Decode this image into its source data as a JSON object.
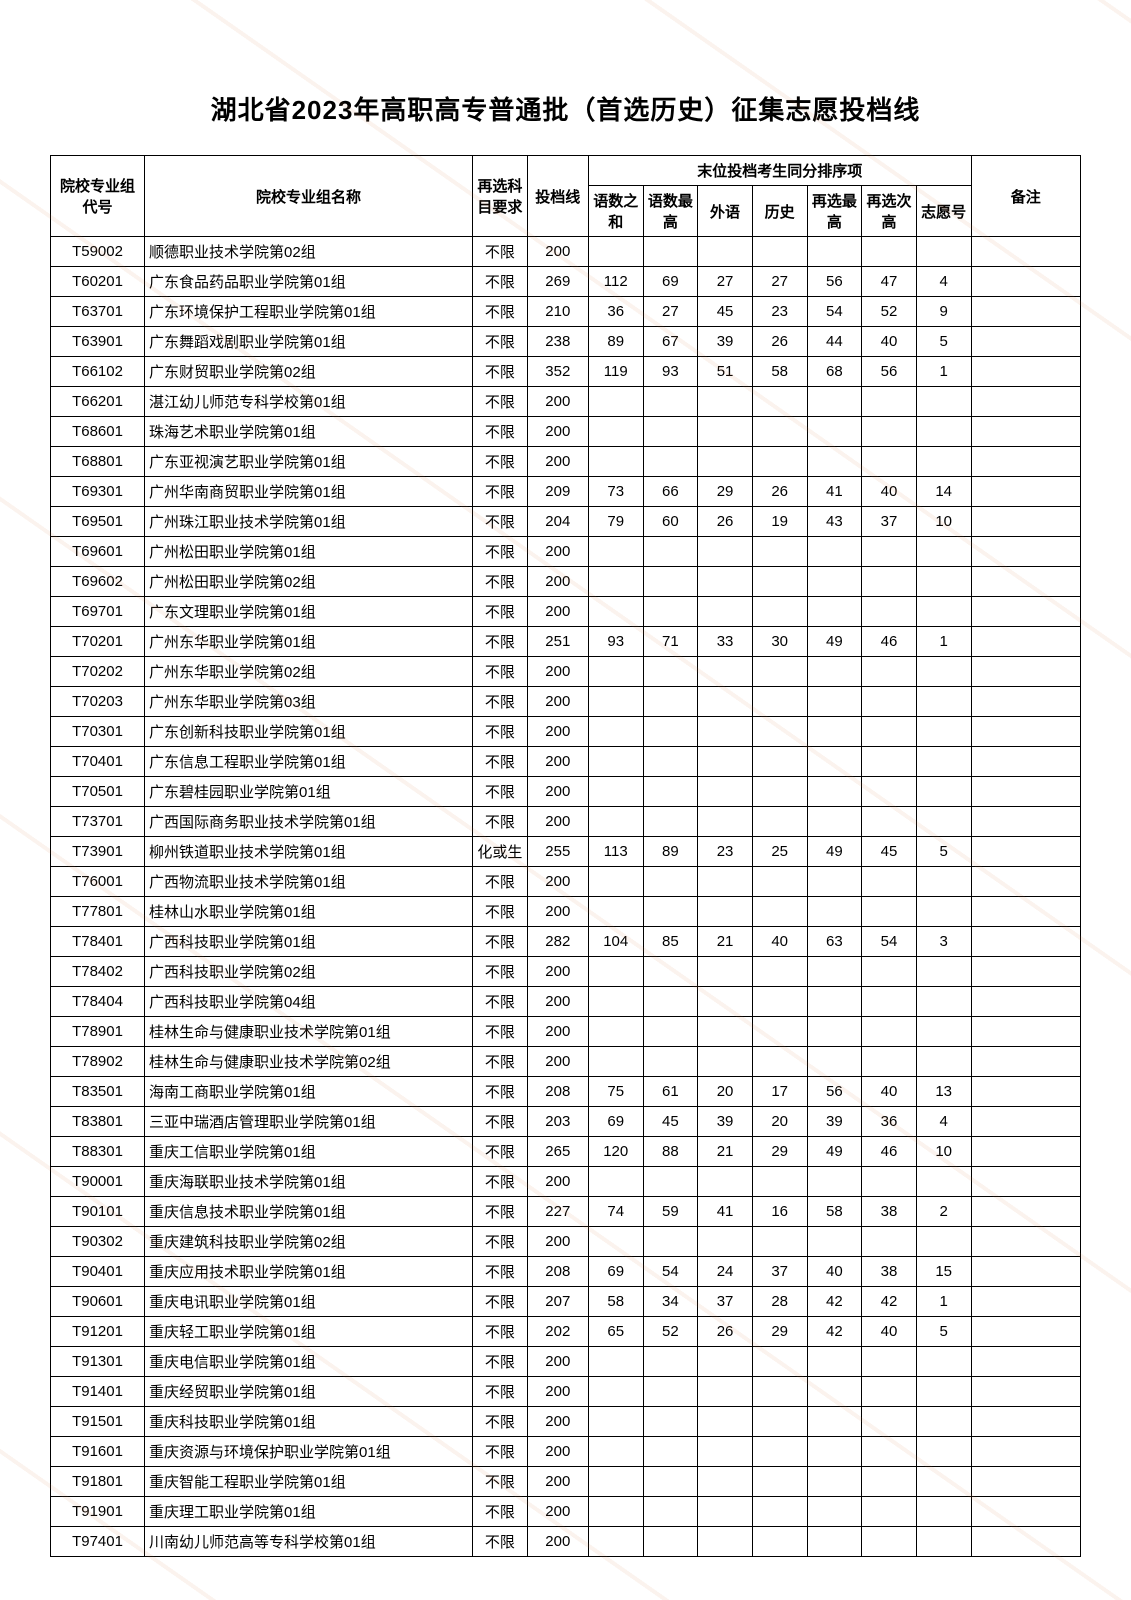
{
  "title": "湖北省2023年高职高专普通批（首选历史）征集志愿投档线",
  "header": {
    "code": "院校专业组代号",
    "name": "院校专业组名称",
    "req": "再选科目要求",
    "line": "投档线",
    "group": "末位投档考生同分排序项",
    "s1": "语数之和",
    "s2": "语数最高",
    "s3": "外语",
    "s4": "历史",
    "s5": "再选最高",
    "s6": "再选次高",
    "s7": "志愿号",
    "note": "备注"
  },
  "colors": {
    "border": "#000000",
    "background": "#ffffff",
    "watermark": "#d67a45"
  },
  "fontsize": {
    "title": 26,
    "cell": 15
  },
  "rows": [
    {
      "code": "T59002",
      "name": "顺德职业技术学院第02组",
      "req": "不限",
      "line": "200",
      "s1": "",
      "s2": "",
      "s3": "",
      "s4": "",
      "s5": "",
      "s6": "",
      "s7": "",
      "note": ""
    },
    {
      "code": "T60201",
      "name": "广东食品药品职业学院第01组",
      "req": "不限",
      "line": "269",
      "s1": "112",
      "s2": "69",
      "s3": "27",
      "s4": "27",
      "s5": "56",
      "s6": "47",
      "s7": "4",
      "note": ""
    },
    {
      "code": "T63701",
      "name": "广东环境保护工程职业学院第01组",
      "req": "不限",
      "line": "210",
      "s1": "36",
      "s2": "27",
      "s3": "45",
      "s4": "23",
      "s5": "54",
      "s6": "52",
      "s7": "9",
      "note": ""
    },
    {
      "code": "T63901",
      "name": "广东舞蹈戏剧职业学院第01组",
      "req": "不限",
      "line": "238",
      "s1": "89",
      "s2": "67",
      "s3": "39",
      "s4": "26",
      "s5": "44",
      "s6": "40",
      "s7": "5",
      "note": ""
    },
    {
      "code": "T66102",
      "name": "广东财贸职业学院第02组",
      "req": "不限",
      "line": "352",
      "s1": "119",
      "s2": "93",
      "s3": "51",
      "s4": "58",
      "s5": "68",
      "s6": "56",
      "s7": "1",
      "note": ""
    },
    {
      "code": "T66201",
      "name": "湛江幼儿师范专科学校第01组",
      "req": "不限",
      "line": "200",
      "s1": "",
      "s2": "",
      "s3": "",
      "s4": "",
      "s5": "",
      "s6": "",
      "s7": "",
      "note": ""
    },
    {
      "code": "T68601",
      "name": "珠海艺术职业学院第01组",
      "req": "不限",
      "line": "200",
      "s1": "",
      "s2": "",
      "s3": "",
      "s4": "",
      "s5": "",
      "s6": "",
      "s7": "",
      "note": ""
    },
    {
      "code": "T68801",
      "name": "广东亚视演艺职业学院第01组",
      "req": "不限",
      "line": "200",
      "s1": "",
      "s2": "",
      "s3": "",
      "s4": "",
      "s5": "",
      "s6": "",
      "s7": "",
      "note": ""
    },
    {
      "code": "T69301",
      "name": "广州华南商贸职业学院第01组",
      "req": "不限",
      "line": "209",
      "s1": "73",
      "s2": "66",
      "s3": "29",
      "s4": "26",
      "s5": "41",
      "s6": "40",
      "s7": "14",
      "note": ""
    },
    {
      "code": "T69501",
      "name": "广州珠江职业技术学院第01组",
      "req": "不限",
      "line": "204",
      "s1": "79",
      "s2": "60",
      "s3": "26",
      "s4": "19",
      "s5": "43",
      "s6": "37",
      "s7": "10",
      "note": ""
    },
    {
      "code": "T69601",
      "name": "广州松田职业学院第01组",
      "req": "不限",
      "line": "200",
      "s1": "",
      "s2": "",
      "s3": "",
      "s4": "",
      "s5": "",
      "s6": "",
      "s7": "",
      "note": ""
    },
    {
      "code": "T69602",
      "name": "广州松田职业学院第02组",
      "req": "不限",
      "line": "200",
      "s1": "",
      "s2": "",
      "s3": "",
      "s4": "",
      "s5": "",
      "s6": "",
      "s7": "",
      "note": ""
    },
    {
      "code": "T69701",
      "name": "广东文理职业学院第01组",
      "req": "不限",
      "line": "200",
      "s1": "",
      "s2": "",
      "s3": "",
      "s4": "",
      "s5": "",
      "s6": "",
      "s7": "",
      "note": ""
    },
    {
      "code": "T70201",
      "name": "广州东华职业学院第01组",
      "req": "不限",
      "line": "251",
      "s1": "93",
      "s2": "71",
      "s3": "33",
      "s4": "30",
      "s5": "49",
      "s6": "46",
      "s7": "1",
      "note": ""
    },
    {
      "code": "T70202",
      "name": "广州东华职业学院第02组",
      "req": "不限",
      "line": "200",
      "s1": "",
      "s2": "",
      "s3": "",
      "s4": "",
      "s5": "",
      "s6": "",
      "s7": "",
      "note": ""
    },
    {
      "code": "T70203",
      "name": "广州东华职业学院第03组",
      "req": "不限",
      "line": "200",
      "s1": "",
      "s2": "",
      "s3": "",
      "s4": "",
      "s5": "",
      "s6": "",
      "s7": "",
      "note": ""
    },
    {
      "code": "T70301",
      "name": "广东创新科技职业学院第01组",
      "req": "不限",
      "line": "200",
      "s1": "",
      "s2": "",
      "s3": "",
      "s4": "",
      "s5": "",
      "s6": "",
      "s7": "",
      "note": ""
    },
    {
      "code": "T70401",
      "name": "广东信息工程职业学院第01组",
      "req": "不限",
      "line": "200",
      "s1": "",
      "s2": "",
      "s3": "",
      "s4": "",
      "s5": "",
      "s6": "",
      "s7": "",
      "note": ""
    },
    {
      "code": "T70501",
      "name": "广东碧桂园职业学院第01组",
      "req": "不限",
      "line": "200",
      "s1": "",
      "s2": "",
      "s3": "",
      "s4": "",
      "s5": "",
      "s6": "",
      "s7": "",
      "note": ""
    },
    {
      "code": "T73701",
      "name": "广西国际商务职业技术学院第01组",
      "req": "不限",
      "line": "200",
      "s1": "",
      "s2": "",
      "s3": "",
      "s4": "",
      "s5": "",
      "s6": "",
      "s7": "",
      "note": ""
    },
    {
      "code": "T73901",
      "name": "柳州铁道职业技术学院第01组",
      "req": "化或生",
      "line": "255",
      "s1": "113",
      "s2": "89",
      "s3": "23",
      "s4": "25",
      "s5": "49",
      "s6": "45",
      "s7": "5",
      "note": ""
    },
    {
      "code": "T76001",
      "name": "广西物流职业技术学院第01组",
      "req": "不限",
      "line": "200",
      "s1": "",
      "s2": "",
      "s3": "",
      "s4": "",
      "s5": "",
      "s6": "",
      "s7": "",
      "note": ""
    },
    {
      "code": "T77801",
      "name": "桂林山水职业学院第01组",
      "req": "不限",
      "line": "200",
      "s1": "",
      "s2": "",
      "s3": "",
      "s4": "",
      "s5": "",
      "s6": "",
      "s7": "",
      "note": ""
    },
    {
      "code": "T78401",
      "name": "广西科技职业学院第01组",
      "req": "不限",
      "line": "282",
      "s1": "104",
      "s2": "85",
      "s3": "21",
      "s4": "40",
      "s5": "63",
      "s6": "54",
      "s7": "3",
      "note": ""
    },
    {
      "code": "T78402",
      "name": "广西科技职业学院第02组",
      "req": "不限",
      "line": "200",
      "s1": "",
      "s2": "",
      "s3": "",
      "s4": "",
      "s5": "",
      "s6": "",
      "s7": "",
      "note": ""
    },
    {
      "code": "T78404",
      "name": "广西科技职业学院第04组",
      "req": "不限",
      "line": "200",
      "s1": "",
      "s2": "",
      "s3": "",
      "s4": "",
      "s5": "",
      "s6": "",
      "s7": "",
      "note": ""
    },
    {
      "code": "T78901",
      "name": "桂林生命与健康职业技术学院第01组",
      "req": "不限",
      "line": "200",
      "s1": "",
      "s2": "",
      "s3": "",
      "s4": "",
      "s5": "",
      "s6": "",
      "s7": "",
      "note": ""
    },
    {
      "code": "T78902",
      "name": "桂林生命与健康职业技术学院第02组",
      "req": "不限",
      "line": "200",
      "s1": "",
      "s2": "",
      "s3": "",
      "s4": "",
      "s5": "",
      "s6": "",
      "s7": "",
      "note": ""
    },
    {
      "code": "T83501",
      "name": "海南工商职业学院第01组",
      "req": "不限",
      "line": "208",
      "s1": "75",
      "s2": "61",
      "s3": "20",
      "s4": "17",
      "s5": "56",
      "s6": "40",
      "s7": "13",
      "note": ""
    },
    {
      "code": "T83801",
      "name": "三亚中瑞酒店管理职业学院第01组",
      "req": "不限",
      "line": "203",
      "s1": "69",
      "s2": "45",
      "s3": "39",
      "s4": "20",
      "s5": "39",
      "s6": "36",
      "s7": "4",
      "note": ""
    },
    {
      "code": "T88301",
      "name": "重庆工信职业学院第01组",
      "req": "不限",
      "line": "265",
      "s1": "120",
      "s2": "88",
      "s3": "21",
      "s4": "29",
      "s5": "49",
      "s6": "46",
      "s7": "10",
      "note": ""
    },
    {
      "code": "T90001",
      "name": "重庆海联职业技术学院第01组",
      "req": "不限",
      "line": "200",
      "s1": "",
      "s2": "",
      "s3": "",
      "s4": "",
      "s5": "",
      "s6": "",
      "s7": "",
      "note": ""
    },
    {
      "code": "T90101",
      "name": "重庆信息技术职业学院第01组",
      "req": "不限",
      "line": "227",
      "s1": "74",
      "s2": "59",
      "s3": "41",
      "s4": "16",
      "s5": "58",
      "s6": "38",
      "s7": "2",
      "note": ""
    },
    {
      "code": "T90302",
      "name": "重庆建筑科技职业学院第02组",
      "req": "不限",
      "line": "200",
      "s1": "",
      "s2": "",
      "s3": "",
      "s4": "",
      "s5": "",
      "s6": "",
      "s7": "",
      "note": ""
    },
    {
      "code": "T90401",
      "name": "重庆应用技术职业学院第01组",
      "req": "不限",
      "line": "208",
      "s1": "69",
      "s2": "54",
      "s3": "24",
      "s4": "37",
      "s5": "40",
      "s6": "38",
      "s7": "15",
      "note": ""
    },
    {
      "code": "T90601",
      "name": "重庆电讯职业学院第01组",
      "req": "不限",
      "line": "207",
      "s1": "58",
      "s2": "34",
      "s3": "37",
      "s4": "28",
      "s5": "42",
      "s6": "42",
      "s7": "1",
      "note": ""
    },
    {
      "code": "T91201",
      "name": "重庆轻工职业学院第01组",
      "req": "不限",
      "line": "202",
      "s1": "65",
      "s2": "52",
      "s3": "26",
      "s4": "29",
      "s5": "42",
      "s6": "40",
      "s7": "5",
      "note": ""
    },
    {
      "code": "T91301",
      "name": "重庆电信职业学院第01组",
      "req": "不限",
      "line": "200",
      "s1": "",
      "s2": "",
      "s3": "",
      "s4": "",
      "s5": "",
      "s6": "",
      "s7": "",
      "note": ""
    },
    {
      "code": "T91401",
      "name": "重庆经贸职业学院第01组",
      "req": "不限",
      "line": "200",
      "s1": "",
      "s2": "",
      "s3": "",
      "s4": "",
      "s5": "",
      "s6": "",
      "s7": "",
      "note": ""
    },
    {
      "code": "T91501",
      "name": "重庆科技职业学院第01组",
      "req": "不限",
      "line": "200",
      "s1": "",
      "s2": "",
      "s3": "",
      "s4": "",
      "s5": "",
      "s6": "",
      "s7": "",
      "note": ""
    },
    {
      "code": "T91601",
      "name": "重庆资源与环境保护职业学院第01组",
      "req": "不限",
      "line": "200",
      "s1": "",
      "s2": "",
      "s3": "",
      "s4": "",
      "s5": "",
      "s6": "",
      "s7": "",
      "note": ""
    },
    {
      "code": "T91801",
      "name": "重庆智能工程职业学院第01组",
      "req": "不限",
      "line": "200",
      "s1": "",
      "s2": "",
      "s3": "",
      "s4": "",
      "s5": "",
      "s6": "",
      "s7": "",
      "note": ""
    },
    {
      "code": "T91901",
      "name": "重庆理工职业学院第01组",
      "req": "不限",
      "line": "200",
      "s1": "",
      "s2": "",
      "s3": "",
      "s4": "",
      "s5": "",
      "s6": "",
      "s7": "",
      "note": ""
    },
    {
      "code": "T97401",
      "name": "川南幼儿师范高等专科学校第01组",
      "req": "不限",
      "line": "200",
      "s1": "",
      "s2": "",
      "s3": "",
      "s4": "",
      "s5": "",
      "s6": "",
      "s7": "",
      "note": ""
    }
  ]
}
